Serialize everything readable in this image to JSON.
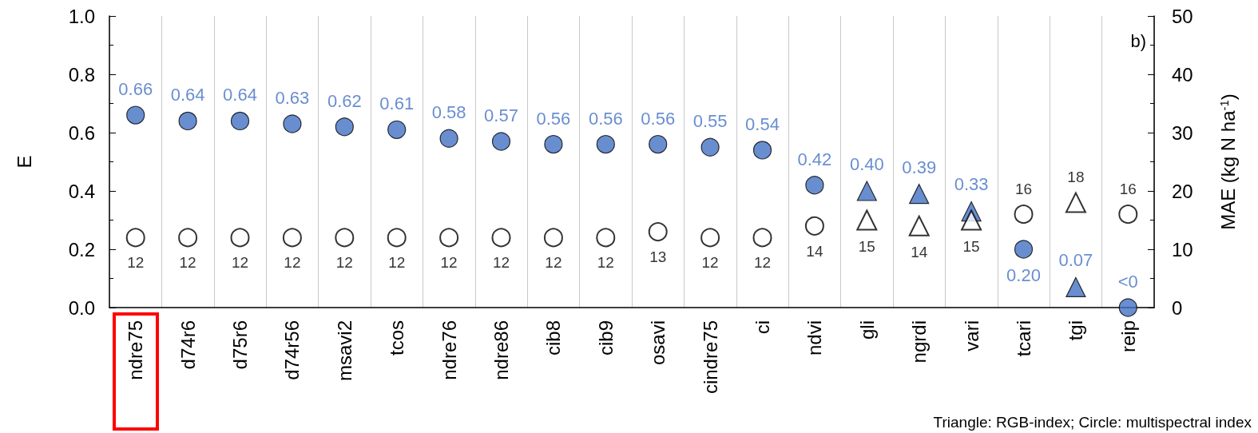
{
  "chart_data": {
    "type": "scatter",
    "categories": [
      "ndre75",
      "d74r6",
      "d75r6",
      "d74r56",
      "msavi2",
      "tcos",
      "ndre76",
      "ndre86",
      "cib8",
      "cib9",
      "osavi",
      "cindre75",
      "ci",
      "ndvi",
      "gli",
      "ngrdi",
      "vari",
      "tcari",
      "tgi",
      "reip"
    ],
    "series": [
      {
        "marker": "circle",
        "color": "#4472c4",
        "values": [
          0.66,
          0.64,
          0.64,
          0.63,
          0.62,
          0.61,
          0.58,
          0.57,
          0.56,
          0.56,
          0.56,
          0.55,
          0.54,
          0.42,
          null,
          null,
          null,
          0.2,
          null,
          0
        ],
        "value_labels": [
          "0.66",
          "0.64",
          "0.64",
          "0.63",
          "0.62",
          "0.61",
          "0.58",
          "0.57",
          "0.56",
          "0.56",
          "0.56",
          "0.55",
          "0.54",
          "0.42",
          null,
          null,
          null,
          "0.20",
          null,
          "<0"
        ]
      },
      {
        "marker": "triangle",
        "color": "#4472c4",
        "values": [
          null,
          null,
          null,
          null,
          null,
          null,
          null,
          null,
          null,
          null,
          null,
          null,
          null,
          null,
          0.4,
          0.39,
          0.33,
          null,
          0.07,
          null
        ],
        "value_labels": [
          null,
          null,
          null,
          null,
          null,
          null,
          null,
          null,
          null,
          null,
          null,
          null,
          null,
          null,
          "0.40",
          "0.39",
          "0.33",
          null,
          "0.07",
          null
        ]
      },
      {
        "marker": "circle",
        "color": "#ffffff",
        "axis": "y2",
        "values": [
          12,
          12,
          12,
          12,
          12,
          12,
          12,
          12,
          12,
          12,
          13,
          12,
          12,
          14,
          null,
          null,
          null,
          16,
          null,
          16
        ],
        "value_labels": [
          "12",
          "12",
          "12",
          "12",
          "12",
          "12",
          "12",
          "12",
          "12",
          "12",
          "13",
          "12",
          "12",
          "14",
          null,
          null,
          null,
          "16",
          null,
          "16"
        ]
      },
      {
        "marker": "triangle",
        "color": "#ffffff",
        "axis": "y2",
        "values": [
          null,
          null,
          null,
          null,
          null,
          null,
          null,
          null,
          null,
          null,
          null,
          null,
          null,
          null,
          15,
          14,
          15,
          null,
          18,
          null
        ],
        "value_labels": [
          null,
          null,
          null,
          null,
          null,
          null,
          null,
          null,
          null,
          null,
          null,
          null,
          null,
          null,
          "15",
          "14",
          "15",
          null,
          "18",
          null
        ]
      }
    ],
    "ylabel": "E",
    "y2label": "MAE (kg N ha$^{-1}$)",
    "ylim": [
      0,
      1
    ],
    "yticks": [
      {
        "value": 0,
        "label": "0.0"
      },
      {
        "value": 0.2,
        "label": "0.2"
      },
      {
        "value": 0.4,
        "label": "0.4"
      },
      {
        "value": 0.6,
        "label": "0.6"
      },
      {
        "value": 0.8,
        "label": "0.8"
      },
      {
        "value": 1,
        "label": "1.0"
      }
    ],
    "y2lim": [
      0,
      50
    ],
    "y2ticks": [
      0,
      10,
      20,
      30,
      40,
      50
    ],
    "grid": "x",
    "annotations": [
      "b)",
      "Triangle: RGB-index; Circle: multispectral index"
    ]
  }
}
